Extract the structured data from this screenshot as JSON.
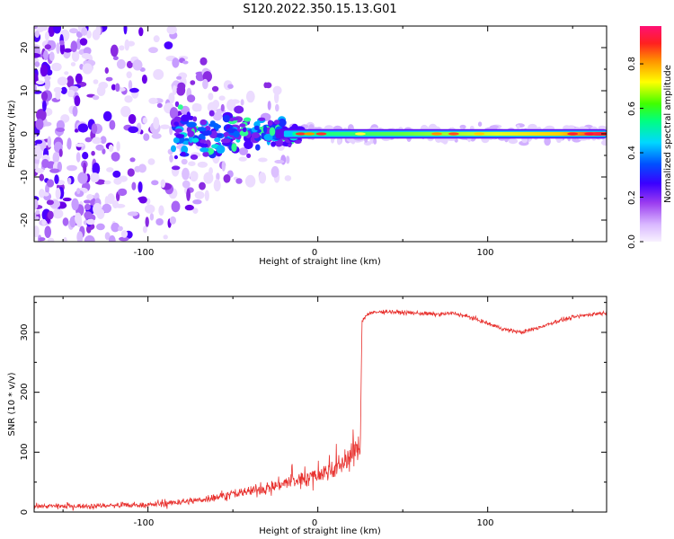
{
  "title": "S120.2022.350.15.13.G01",
  "colors": {
    "snr_line": "#e8322f",
    "axis": "#000000",
    "colormap": [
      "#f5f0ff",
      "#d9b8ff",
      "#9b3cf0",
      "#5a00e6",
      "#1a1aff",
      "#00c8ff",
      "#00ff66",
      "#ffff00",
      "#ff8800",
      "#ff0033",
      "#ff1070"
    ]
  },
  "chart_data": [
    {
      "type": "heatmap",
      "title": "S120.2022.350.15.13.G01",
      "xlabel": "Height of straight line (km)",
      "ylabel": "Frequency (Hz)",
      "xlim": [
        -167,
        170
      ],
      "ylim": [
        -25,
        25
      ],
      "xticks": [
        "-100",
        "0",
        "100"
      ],
      "yticks": [
        "-20",
        "-10",
        "0",
        "10",
        "20"
      ],
      "colorbar": {
        "label": "Normalized spectral amplitude",
        "range": [
          0,
          0.97
        ],
        "ticks": [
          "0.0",
          "0.2",
          "0.4",
          "0.6",
          "0.8"
        ]
      },
      "description_values": {
        "ridge_frequency_hz": 0,
        "ridge_start_km": -25,
        "scatter_region_km": [
          -167,
          -25
        ],
        "max_amplitude_near_km": 160
      }
    },
    {
      "type": "line",
      "xlabel": "Height of straight line (km)",
      "ylabel": "SNR (10 * v/v)",
      "xlim": [
        -167,
        170
      ],
      "ylim": [
        0,
        360
      ],
      "xticks": [
        "-100",
        "0",
        "100"
      ],
      "yticks": [
        "0",
        "100",
        "200",
        "300"
      ],
      "series": [
        {
          "x": [
            -167,
            -140,
            -120,
            -100,
            -90,
            -80,
            -70,
            -60,
            -50,
            -40,
            -30,
            -20,
            -10,
            0,
            10,
            15,
            20,
            25,
            26,
            30,
            40,
            50,
            60,
            70,
            80,
            90,
            100,
            110,
            120,
            130,
            140,
            150,
            160,
            170
          ],
          "values": [
            10,
            10,
            11,
            12,
            14,
            17,
            20,
            25,
            30,
            35,
            40,
            48,
            55,
            62,
            72,
            82,
            95,
            110,
            320,
            332,
            335,
            333,
            332,
            330,
            332,
            325,
            315,
            305,
            300,
            308,
            318,
            325,
            330,
            333
          ]
        }
      ]
    }
  ]
}
